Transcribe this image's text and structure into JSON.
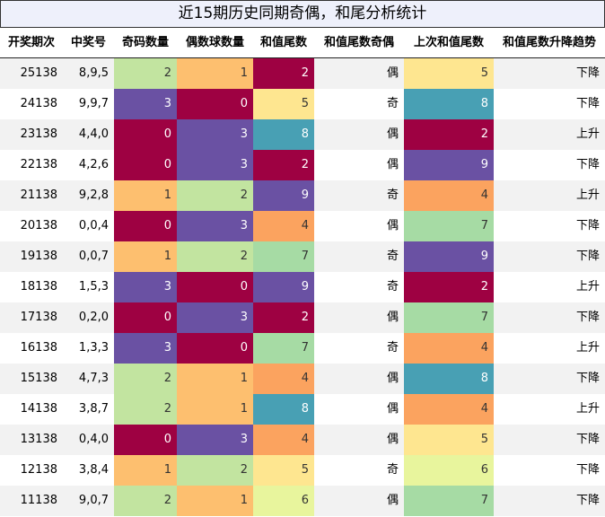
{
  "title": "近15期历史同期奇偶，和尾分析统计",
  "columns": [
    "开奖期次",
    "中奖号",
    "奇码数量",
    "偶数球数量",
    "和值尾数",
    "和值尾数奇偶",
    "上次和值尾数",
    "和值尾数升降趋势"
  ],
  "chart_data": {
    "type": "table",
    "title": "近15期历史同期奇偶，和尾分析统计",
    "columns": [
      "开奖期次",
      "中奖号",
      "奇码数量",
      "偶数球数量",
      "和值尾数",
      "和值尾数奇偶",
      "上次和值尾数",
      "和值尾数升降趋势"
    ],
    "rows": [
      [
        "25138",
        "8,9,5",
        2,
        1,
        2,
        "偶",
        5,
        "下降"
      ],
      [
        "24138",
        "9,9,7",
        3,
        0,
        5,
        "奇",
        8,
        "下降"
      ],
      [
        "23138",
        "4,4,0",
        0,
        3,
        8,
        "偶",
        2,
        "上升"
      ],
      [
        "22138",
        "4,2,6",
        0,
        3,
        2,
        "偶",
        9,
        "下降"
      ],
      [
        "21138",
        "9,2,8",
        1,
        2,
        9,
        "奇",
        4,
        "上升"
      ],
      [
        "20138",
        "0,0,4",
        0,
        3,
        4,
        "偶",
        7,
        "下降"
      ],
      [
        "19138",
        "0,0,7",
        1,
        2,
        7,
        "奇",
        9,
        "下降"
      ],
      [
        "18138",
        "1,5,3",
        3,
        0,
        9,
        "奇",
        2,
        "上升"
      ],
      [
        "17138",
        "0,2,0",
        0,
        3,
        2,
        "偶",
        7,
        "下降"
      ],
      [
        "16138",
        "1,3,3",
        3,
        0,
        7,
        "奇",
        4,
        "上升"
      ],
      [
        "15138",
        "4,7,3",
        2,
        1,
        4,
        "偶",
        8,
        "下降"
      ],
      [
        "14138",
        "3,8,7",
        2,
        1,
        8,
        "偶",
        4,
        "上升"
      ],
      [
        "13138",
        "0,4,0",
        0,
        3,
        4,
        "偶",
        5,
        "下降"
      ],
      [
        "12138",
        "3,8,4",
        1,
        2,
        5,
        "奇",
        6,
        "下降"
      ],
      [
        "11138",
        "9,0,7",
        2,
        1,
        6,
        "偶",
        7,
        "下降"
      ]
    ],
    "colors": {
      "0": "#9e0142",
      "1": "#fdbf6f",
      "2": "#c2e4a0",
      "3": "#6a51a3",
      "k": {
        "2": "#9e0142",
        "4": "#fba35f",
        "5": "#fee690",
        "6": "#e8f59d",
        "7": "#a6dba4",
        "8": "#48a0b4",
        "9": "#6a51a3"
      }
    }
  }
}
